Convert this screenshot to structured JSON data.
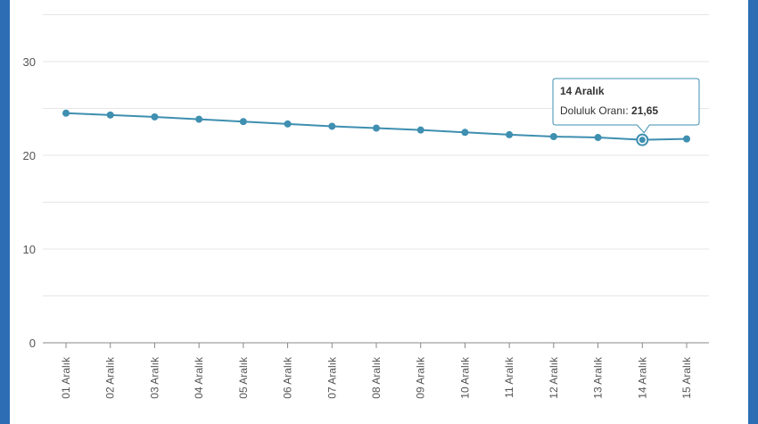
{
  "chart_data": {
    "type": "line",
    "categories": [
      "01 Aralık",
      "02 Aralık",
      "03 Aralık",
      "04 Aralık",
      "05 Aralık",
      "06 Aralık",
      "07 Aralık",
      "08 Aralık",
      "09 Aralık",
      "10 Aralık",
      "11 Aralık",
      "12 Aralık",
      "13 Aralık",
      "14 Aralık",
      "15 Aralık"
    ],
    "series": [
      {
        "name": "Doluluk Oranı",
        "color": "#3e8fb0",
        "values": [
          24.5,
          24.3,
          24.1,
          23.85,
          23.6,
          23.35,
          23.1,
          22.9,
          22.7,
          22.45,
          22.2,
          22.0,
          21.9,
          21.65,
          21.75
        ]
      }
    ],
    "yticks": [
      0,
      10,
      20,
      30
    ],
    "ylim": [
      0,
      35
    ],
    "grid": true,
    "tooltip": {
      "title": "14 Aralık",
      "label": "Doluluk Oranı:",
      "value": "21,65",
      "index": 13
    }
  },
  "colors": {
    "frame": "#2c6db3",
    "grid": "#e6e6e6",
    "axis": "#888888",
    "line": "#3e8fb0"
  }
}
